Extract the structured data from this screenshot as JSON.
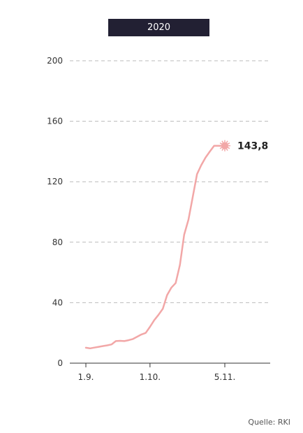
{
  "badge": {
    "label": "2020"
  },
  "source": {
    "text": "Quelle: RKI"
  },
  "colors": {
    "line": "#f2a7a7",
    "badge_bg": "#222033",
    "axis": "#333333",
    "grid": "#bbbbbb"
  },
  "chart_data": {
    "type": "line",
    "title": "2020",
    "xlabel": "",
    "ylabel": "",
    "ylim": [
      0,
      200
    ],
    "yticks": [
      0,
      40,
      80,
      120,
      160,
      200
    ],
    "xticks": [
      {
        "day": 1,
        "label": "1.9."
      },
      {
        "day": 31,
        "label": "1.10."
      },
      {
        "day": 66,
        "label": "5.11."
      }
    ],
    "grid": true,
    "series": [
      {
        "name": "",
        "x": [
          1,
          3,
          5,
          7,
          9,
          11,
          13,
          15,
          17,
          19,
          21,
          23,
          25,
          27,
          29,
          31,
          33,
          35,
          37,
          39,
          41,
          43,
          45,
          47,
          49,
          51,
          53,
          55,
          57,
          59,
          61,
          63,
          65,
          66
        ],
        "y": [
          10.2,
          9.8,
          10.3,
          10.8,
          11.3,
          11.8,
          12.4,
          14.6,
          14.8,
          14.6,
          15.2,
          16.0,
          17.5,
          19.0,
          20.0,
          24.0,
          28.5,
          32.0,
          36.0,
          45.0,
          50.0,
          53.0,
          65.0,
          85.0,
          95.0,
          110.0,
          125.0,
          131.0,
          136.0,
          140.0,
          143.8,
          143.8,
          143.8,
          143.8
        ]
      }
    ],
    "annotation": {
      "x": 66,
      "y": 143.8,
      "label": "143,8"
    }
  }
}
